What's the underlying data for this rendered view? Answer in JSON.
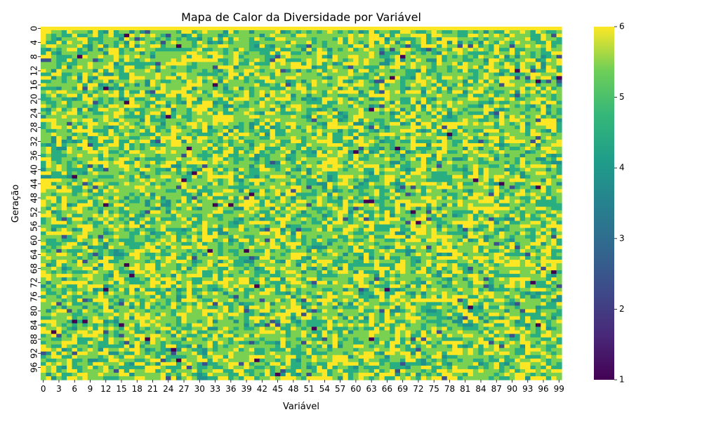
{
  "chart_data": {
    "type": "heatmap",
    "title": "Mapa de Calor da Diversidade por Variável",
    "xlabel": "Variável",
    "ylabel": "Geração",
    "rows": 100,
    "cols": 100,
    "x_tick_labels": [
      "0",
      "3",
      "6",
      "9",
      "12",
      "15",
      "18",
      "21",
      "24",
      "27",
      "30",
      "33",
      "36",
      "39",
      "42",
      "45",
      "48",
      "51",
      "54",
      "57",
      "60",
      "63",
      "66",
      "69",
      "72",
      "75",
      "78",
      "81",
      "84",
      "87",
      "90",
      "93",
      "96",
      "99"
    ],
    "y_tick_labels": [
      "0",
      "4",
      "8",
      "12",
      "16",
      "20",
      "24",
      "28",
      "32",
      "36",
      "40",
      "44",
      "48",
      "52",
      "56",
      "60",
      "64",
      "68",
      "72",
      "76",
      "80",
      "84",
      "88",
      "92",
      "96"
    ],
    "colormap": "viridis",
    "vmin": 1,
    "vmax": 6,
    "colorbar_ticks": [
      1,
      2,
      3,
      4,
      5,
      6
    ],
    "value_distribution": {
      "6": 0.27,
      "5": 0.4,
      "4": 0.25,
      "3": 0.06,
      "2": 0.015,
      "1": 0.005
    },
    "notes_visible": {
      "row_0_all_max": true
    },
    "colors": {
      "viridis_1": "#440154",
      "viridis_2": "#3b528b",
      "viridis_3": "#21918c",
      "viridis_4": "#28ae80",
      "viridis_5": "#7ad151",
      "viridis_6": "#fde725"
    }
  }
}
